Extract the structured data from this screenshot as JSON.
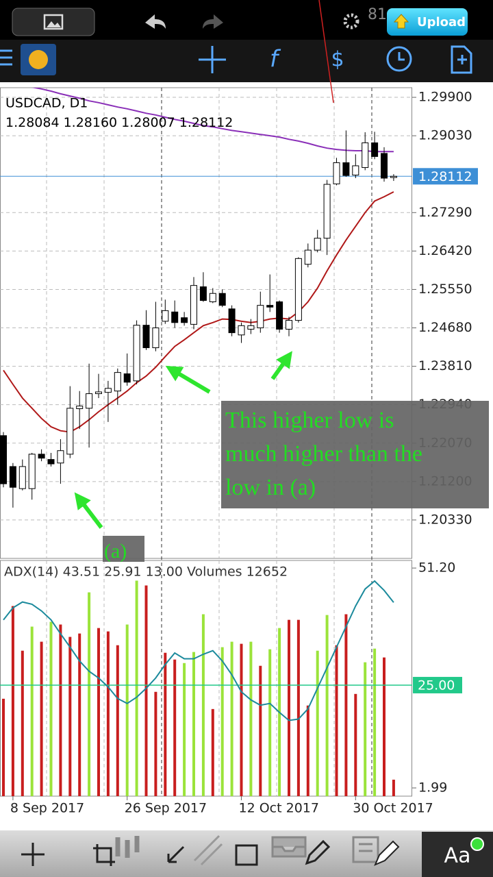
{
  "toolbar": {
    "battery": "81",
    "upload": "Upload",
    "font_button": "Aa"
  },
  "chart_data": [
    {
      "type": "candlestick",
      "title": "USDCAD, D1",
      "quote": [
        "1.28084",
        "1.28160",
        "1.28007",
        "1.28112"
      ],
      "categories": [
        null,
        "8 Sep 2017",
        null,
        null,
        null,
        null,
        null,
        null,
        null,
        null,
        null,
        null,
        null,
        "26 Sep 2017",
        null,
        null,
        null,
        null,
        null,
        null,
        null,
        null,
        null,
        null,
        null,
        "12 Oct 2017",
        null,
        null,
        null,
        null,
        null,
        null,
        null,
        null,
        null,
        null,
        null,
        "30 Oct 2017",
        null,
        null,
        null,
        null
      ],
      "open": [
        1.2224,
        1.2154,
        1.2104,
        1.2104,
        1.2182,
        1.217,
        1.2162,
        1.2182,
        1.2285,
        1.2286,
        1.2319,
        1.2322,
        1.2325,
        1.2364,
        1.2348,
        1.2474,
        1.2423,
        1.2483,
        1.2504,
        1.2491,
        1.2476,
        1.2561,
        1.2527,
        1.2546,
        1.2511,
        1.2452,
        1.2465,
        1.2468,
        1.2519,
        1.2527,
        1.2465,
        1.2485,
        1.2612,
        1.2644,
        1.2671,
        1.2794,
        1.2842,
        1.2814,
        1.2831,
        1.2887,
        1.2863,
        1.28084
      ],
      "high": [
        1.2232,
        1.2162,
        1.217,
        1.2185,
        1.2193,
        1.2185,
        1.2216,
        1.2336,
        1.2325,
        1.2387,
        1.2364,
        1.2348,
        1.2376,
        1.241,
        1.2485,
        1.2508,
        1.2527,
        1.2532,
        1.253,
        1.2504,
        1.2583,
        1.2594,
        1.2558,
        1.2555,
        1.2519,
        1.248,
        1.2488,
        1.255,
        1.2589,
        1.253,
        1.2493,
        1.2628,
        1.2659,
        1.269,
        1.2803,
        1.2853,
        1.2915,
        1.2861,
        1.2911,
        1.2912,
        1.2877,
        1.2816
      ],
      "low": [
        1.2107,
        1.2061,
        1.21,
        1.2079,
        1.2166,
        1.2154,
        1.2115,
        1.2173,
        1.2239,
        1.2197,
        1.2309,
        1.2255,
        1.2294,
        1.2337,
        1.234,
        1.2418,
        1.2415,
        1.2477,
        1.2468,
        1.2473,
        1.2465,
        1.2527,
        1.2524,
        1.2515,
        1.2449,
        1.2434,
        1.2454,
        1.2457,
        1.2504,
        1.2457,
        1.2449,
        1.248,
        1.2605,
        1.2639,
        1.2633,
        1.2791,
        1.281,
        1.2807,
        1.2825,
        1.285,
        1.2799,
        1.28007
      ],
      "close": [
        1.2115,
        1.2107,
        1.2154,
        1.2182,
        1.2173,
        1.216,
        1.219,
        1.2286,
        1.2291,
        1.2319,
        1.2323,
        1.2331,
        1.2367,
        1.2345,
        1.2474,
        1.2423,
        1.2468,
        1.2507,
        1.248,
        1.248,
        1.2564,
        1.253,
        1.2546,
        1.2519,
        1.2457,
        1.2473,
        1.2473,
        1.2519,
        1.2515,
        1.2465,
        1.2485,
        1.2625,
        1.2644,
        1.2671,
        1.2793,
        1.2842,
        1.2813,
        1.2835,
        1.2887,
        1.2856,
        1.2807,
        1.28112
      ],
      "up_color": "#ffffff",
      "down_color": "#000000",
      "series": [
        {
          "color": "#8a2fb8",
          "values": [
            1.3027,
            1.3024,
            1.3021,
            1.3013,
            1.3009,
            1.3004,
            1.2998,
            1.2993,
            1.2988,
            1.2982,
            1.2978,
            1.2973,
            1.2968,
            1.2964,
            1.2959,
            1.2954,
            1.295,
            1.2945,
            1.294,
            1.2936,
            1.2931,
            1.2926,
            1.2923,
            1.2919,
            1.2915,
            1.2912,
            1.2909,
            1.2906,
            1.2903,
            1.29,
            1.2895,
            1.2891,
            1.2886,
            1.288,
            1.2875,
            1.2872,
            1.287,
            1.2869,
            1.2869,
            1.2867,
            1.2867,
            1.2867
          ]
        },
        {
          "color": "#b01818",
          "values": [
            1.2372,
            1.234,
            1.2309,
            1.2286,
            1.2263,
            1.2244,
            1.2235,
            1.2232,
            1.2244,
            1.226,
            1.2278,
            1.2294,
            1.2309,
            1.2325,
            1.2344,
            1.2359,
            1.2379,
            1.2403,
            1.2426,
            1.2441,
            1.2457,
            1.2473,
            1.248,
            1.2488,
            1.2487,
            1.2483,
            1.248,
            1.2483,
            1.2488,
            1.249,
            1.2488,
            1.2504,
            1.2527,
            1.2558,
            1.2597,
            1.2633,
            1.2667,
            1.2698,
            1.2729,
            1.2755,
            1.2765,
            1.2776
          ]
        }
      ],
      "ylim": [
        1.1946,
        1.30118
      ],
      "yticks": [
        {
          "value": 1.299,
          "label": "1.29900"
        },
        {
          "value": 1.2903,
          "label": "1.29030"
        },
        {
          "value": 1.2729,
          "label": "1.27290"
        },
        {
          "value": 1.2642,
          "label": "1.26420"
        },
        {
          "value": 1.2555,
          "label": "1.25550"
        },
        {
          "value": 1.2468,
          "label": "1.24680"
        },
        {
          "value": 1.2381,
          "label": "1.23810"
        },
        {
          "value": 1.2294,
          "label": "1.22940"
        },
        {
          "value": 1.2207,
          "label": "1.22070"
        },
        {
          "value": 1.212,
          "label": "1.21200"
        },
        {
          "value": 1.2033,
          "label": "1.20330"
        }
      ],
      "price_line": {
        "value": 1.28112,
        "label": "1.28112",
        "color": "#3d8fd6"
      },
      "grid": true,
      "annotations": [
        {
          "lines": [
            "This higher low is",
            "much higher than the",
            "low in (a)"
          ],
          "color": "#22dd22"
        },
        {
          "lines": [
            "(a)"
          ],
          "color": "#22dd22"
        }
      ]
    },
    {
      "type": "indicator",
      "title": "ADX(14) 43.51 25.91 13.00 Volumes 12652",
      "ylim": [
        0.15,
        52.9
      ],
      "yticks": [
        {
          "value": 51.2,
          "label": "51.20"
        },
        1.99
      ],
      "levels": [
        {
          "value": 25,
          "label": "25.00",
          "color": "#22c98a"
        }
      ],
      "y2lim": [
        0,
        181000
      ],
      "series": [
        {
          "kind": "bar",
          "axis": "y2",
          "values": [
            74800,
            146000,
            111700,
            130200,
            118600,
            133900,
            131800,
            122300,
            124900,
            156500,
            129100,
            126500,
            115900,
            131800,
            165500,
            161800,
            80100,
            110100,
            104900,
            102200,
            110700,
            139700,
            66900,
            114400,
            118600,
            117000,
            118600,
            100100,
            112800,
            129100,
            135400,
            135400,
            69600,
            111700,
            139100,
            115900,
            139700,
            78500,
            102800,
            113300,
            106500,
            12652
          ],
          "colors": [
            "#c81e1e",
            "#c81e1e",
            "#c81e1e",
            "#9be33a",
            "#c81e1e",
            "#9be33a",
            "#c81e1e",
            "#c81e1e",
            "#c81e1e",
            "#9be33a",
            "#c81e1e",
            "#c81e1e",
            "#c81e1e",
            "#9be33a",
            "#9be33a",
            "#c81e1e",
            "#c81e1e",
            "#c81e1e",
            "#c81e1e",
            "#9be33a",
            "#9be33a",
            "#9be33a",
            "#c81e1e",
            "#9be33a",
            "#9be33a",
            "#c81e1e",
            "#9be33a",
            "#c81e1e",
            "#9be33a",
            "#9be33a",
            "#c81e1e",
            "#c81e1e",
            "#c81e1e",
            "#9be33a",
            "#9be33a",
            "#c81e1e",
            "#c81e1e",
            "#c81e1e",
            "#9be33a",
            "#9be33a",
            "#c81e1e",
            "#c81e1e"
          ]
        },
        {
          "kind": "line",
          "color": "#1b8a9c",
          "values": [
            39.6,
            42.3,
            43.6,
            43.1,
            41.6,
            39.6,
            36.5,
            33.5,
            30.4,
            28.1,
            26.6,
            24.6,
            22.0,
            20.9,
            22.3,
            24.3,
            26.6,
            29.6,
            32.2,
            30.9,
            30.9,
            31.9,
            32.7,
            30.4,
            27.3,
            23.5,
            21.7,
            20.5,
            20.9,
            18.9,
            17.1,
            17.4,
            19.7,
            24.3,
            28.9,
            33.5,
            38.1,
            42.7,
            46.5,
            48.3,
            46.2,
            43.51
          ]
        }
      ]
    }
  ]
}
